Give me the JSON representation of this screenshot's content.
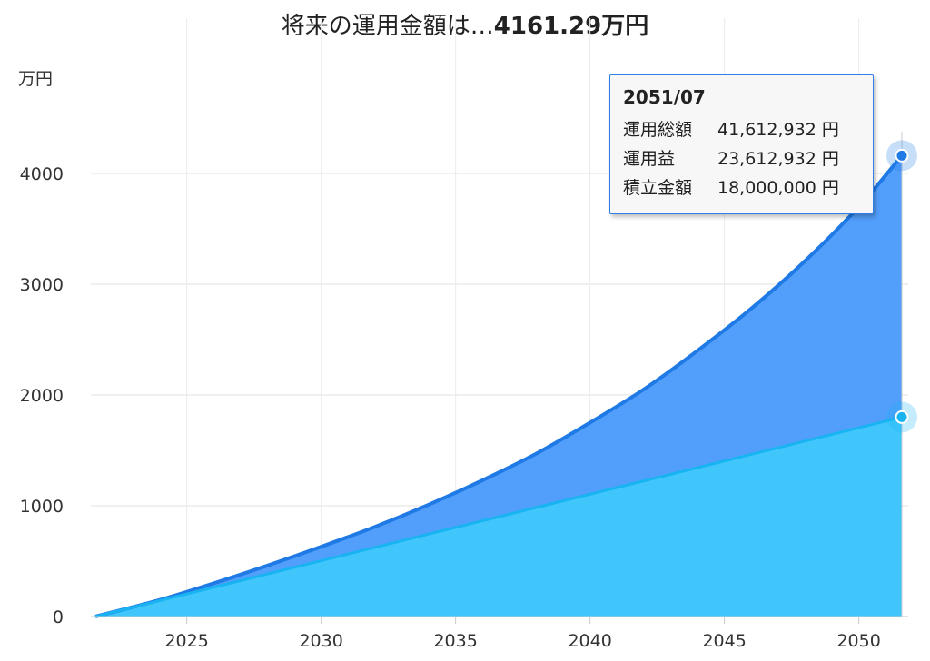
{
  "header": {
    "title_prefix": "将来の運用金額は…",
    "title_amount": "4161.29万円"
  },
  "colors": {
    "total_fill": "#529efb",
    "total_line": "#1f7ae6",
    "principal_fill": "#41c6fc",
    "principal_line": "#18b4f2",
    "grid": "#e2e2e2",
    "tooltip_border": "#2f7fe6"
  },
  "tooltip": {
    "date": "2051/07",
    "rows": [
      {
        "label": "運用総額",
        "value": "41,612,932 円"
      },
      {
        "label": "運用益",
        "value": "23,612,932 円"
      },
      {
        "label": "積立金額",
        "value": "18,000,000 円"
      }
    ]
  },
  "chart_data": {
    "type": "area",
    "title": "将来の運用金額は…4161.29万円",
    "ylabel": "万円",
    "xlabel": "",
    "ylim": [
      0,
      4000
    ],
    "yticks": [
      0,
      1000,
      2000,
      3000,
      4000
    ],
    "xticks": [
      "2025",
      "2030",
      "2035",
      "2040",
      "2045",
      "2050"
    ],
    "xlim": [
      2021.6,
      2051.6
    ],
    "grid": true,
    "series": [
      {
        "name": "運用総額",
        "x": [
          2021.6,
          2024,
          2026,
          2028,
          2030,
          2032,
          2034,
          2036,
          2038,
          2040,
          2042,
          2044,
          2046,
          2048,
          2050,
          2051.6
        ],
        "values": [
          0,
          150,
          300,
          460,
          630,
          810,
          1010,
          1230,
          1470,
          1750,
          2050,
          2400,
          2780,
          3210,
          3700,
          4161.29
        ]
      },
      {
        "name": "積立金額",
        "x": [
          2021.6,
          2051.6
        ],
        "values": [
          0,
          1800
        ]
      }
    ]
  }
}
